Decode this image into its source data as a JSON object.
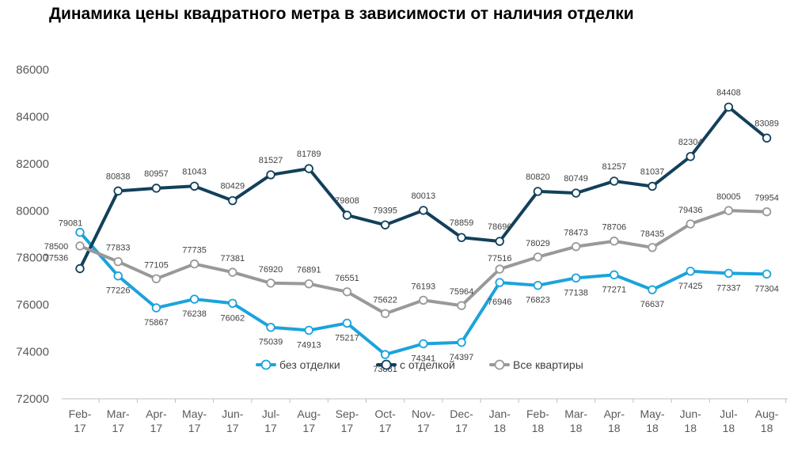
{
  "chart_data": {
    "type": "line",
    "title": "Динамика цены квадратного метра в зависимости от наличия отделки",
    "xlabel": "",
    "ylabel": "",
    "ylim": [
      72000,
      86000
    ],
    "yticks": [
      72000,
      74000,
      76000,
      78000,
      80000,
      82000,
      84000,
      86000
    ],
    "grid": false,
    "legend_position": "bottom-center",
    "categories": [
      "Feb-17",
      "Mar-17",
      "Apr-17",
      "May-17",
      "Jun-17",
      "Jul-17",
      "Aug-17",
      "Sep-17",
      "Oct-17",
      "Nov-17",
      "Dec-17",
      "Jan-18",
      "Feb-18",
      "Mar-18",
      "Apr-18",
      "May-18",
      "Jun-18",
      "Jul-18",
      "Aug-18"
    ],
    "series": [
      {
        "name": "без отделки",
        "color": "#1ba3dc",
        "values": [
          79081,
          77226,
          75867,
          76238,
          76062,
          75039,
          74913,
          75217,
          73881,
          74341,
          74397,
          76946,
          76823,
          77138,
          77271,
          76637,
          77425,
          77337,
          77304
        ]
      },
      {
        "name": "с отделкой",
        "color": "#12405a",
        "values": [
          77536,
          80838,
          80957,
          81043,
          80429,
          81527,
          81789,
          79808,
          79395,
          80013,
          78859,
          78696,
          80820,
          80749,
          81257,
          81037,
          82304,
          84408,
          83089
        ]
      },
      {
        "name": "Все квартиры",
        "color": "#999999",
        "values": [
          78500,
          77833,
          77105,
          77735,
          77381,
          76920,
          76891,
          76551,
          75622,
          76193,
          75964,
          77516,
          78029,
          78473,
          78706,
          78435,
          79436,
          80005,
          79954
        ]
      }
    ]
  }
}
